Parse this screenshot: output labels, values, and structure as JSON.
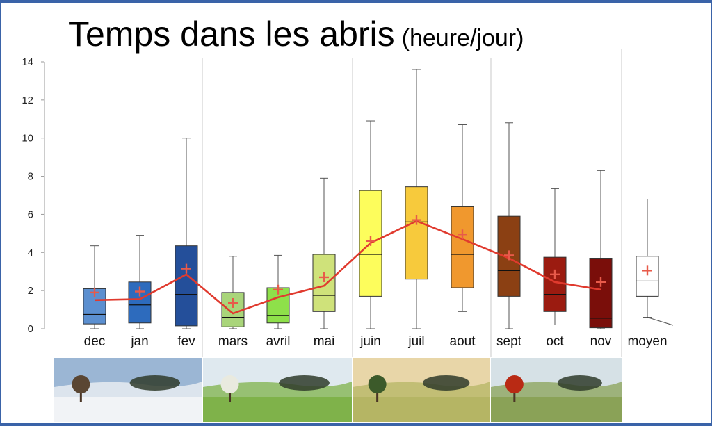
{
  "chart_data": {
    "type": "box",
    "title": "Temps dans les abris",
    "unit": "(heure/jour)",
    "ylim": [
      0,
      14
    ],
    "yticks": [
      0,
      2,
      4,
      6,
      8,
      10,
      12,
      14
    ],
    "categories": [
      "dec",
      "jan",
      "fev",
      "mars",
      "avril",
      "mai",
      "juin",
      "juil",
      "aout",
      "sept",
      "oct",
      "nov"
    ],
    "boxes": [
      {
        "label": "dec",
        "min": 0,
        "q1": 0.25,
        "median": 0.75,
        "q3": 2.1,
        "max": 4.35,
        "mean": 1.9,
        "color": "#5b8fd0"
      },
      {
        "label": "jan",
        "min": 0,
        "q1": 0.3,
        "median": 1.25,
        "q3": 2.45,
        "max": 4.9,
        "mean": 1.95,
        "color": "#2d6bbd"
      },
      {
        "label": "fev",
        "min": 0,
        "q1": 0.15,
        "median": 1.8,
        "q3": 4.35,
        "max": 10.0,
        "mean": 3.15,
        "color": "#244f9a"
      },
      {
        "label": "mars",
        "min": 0,
        "q1": 0.1,
        "median": 0.6,
        "q3": 1.9,
        "max": 3.8,
        "mean": 1.35,
        "color": "#a9d57a"
      },
      {
        "label": "avril",
        "min": 0,
        "q1": 0.3,
        "median": 0.7,
        "q3": 2.15,
        "max": 3.85,
        "mean": 2.05,
        "color": "#8ee04a"
      },
      {
        "label": "mai",
        "min": 0,
        "q1": 0.9,
        "median": 1.75,
        "q3": 3.9,
        "max": 7.9,
        "mean": 2.7,
        "color": "#cfe27a"
      },
      {
        "label": "juin",
        "min": 0,
        "q1": 1.7,
        "median": 3.9,
        "q3": 7.25,
        "max": 10.9,
        "mean": 4.6,
        "color": "#fdfd5c"
      },
      {
        "label": "juil",
        "min": 0,
        "q1": 2.6,
        "median": 5.6,
        "q3": 7.45,
        "max": 13.6,
        "mean": 5.7,
        "color": "#f7ca3c"
      },
      {
        "label": "aout",
        "min": 0.9,
        "q1": 2.15,
        "median": 3.9,
        "q3": 6.4,
        "max": 10.7,
        "mean": 4.95,
        "color": "#f0982e"
      },
      {
        "label": "sept",
        "min": 0,
        "q1": 1.7,
        "median": 3.05,
        "q3": 5.9,
        "max": 10.8,
        "mean": 3.85,
        "color": "#8b4013"
      },
      {
        "label": "oct",
        "min": 0.2,
        "q1": 0.9,
        "median": 1.8,
        "q3": 3.75,
        "max": 7.35,
        "mean": 2.85,
        "color": "#9b1b10"
      },
      {
        "label": "nov",
        "min": 0,
        "q1": 0.05,
        "median": 0.55,
        "q3": 3.7,
        "max": 8.3,
        "mean": 2.45,
        "color": "#7a0e0a"
      }
    ],
    "summary_box": {
      "label": "moyen",
      "min": 0.6,
      "q1": 1.7,
      "median": 2.5,
      "q3": 3.8,
      "max": 6.8,
      "mean": 3.05,
      "color": "#ffffff"
    },
    "mean_line": [
      1.5,
      1.55,
      2.85,
      0.8,
      1.65,
      2.25,
      4.5,
      5.65,
      4.7,
      3.7,
      2.45,
      2.05
    ],
    "mean_line_color": "#e03a2e",
    "mean_marker_color": "#e85a4a"
  },
  "season_photos": [
    {
      "name": "winter",
      "sky": "#9bb6d4",
      "ground": "#f1f3f6",
      "tree": "#5a4633"
    },
    {
      "name": "spring",
      "sky": "#dfe9ef",
      "ground": "#7fb24a",
      "tree": "#e9eadf"
    },
    {
      "name": "summer",
      "sky": "#e8d6a8",
      "ground": "#b5b564",
      "tree": "#3c5a2a"
    },
    {
      "name": "autumn",
      "sky": "#d6e1e6",
      "ground": "#8aa257",
      "tree": "#b92a14"
    }
  ]
}
